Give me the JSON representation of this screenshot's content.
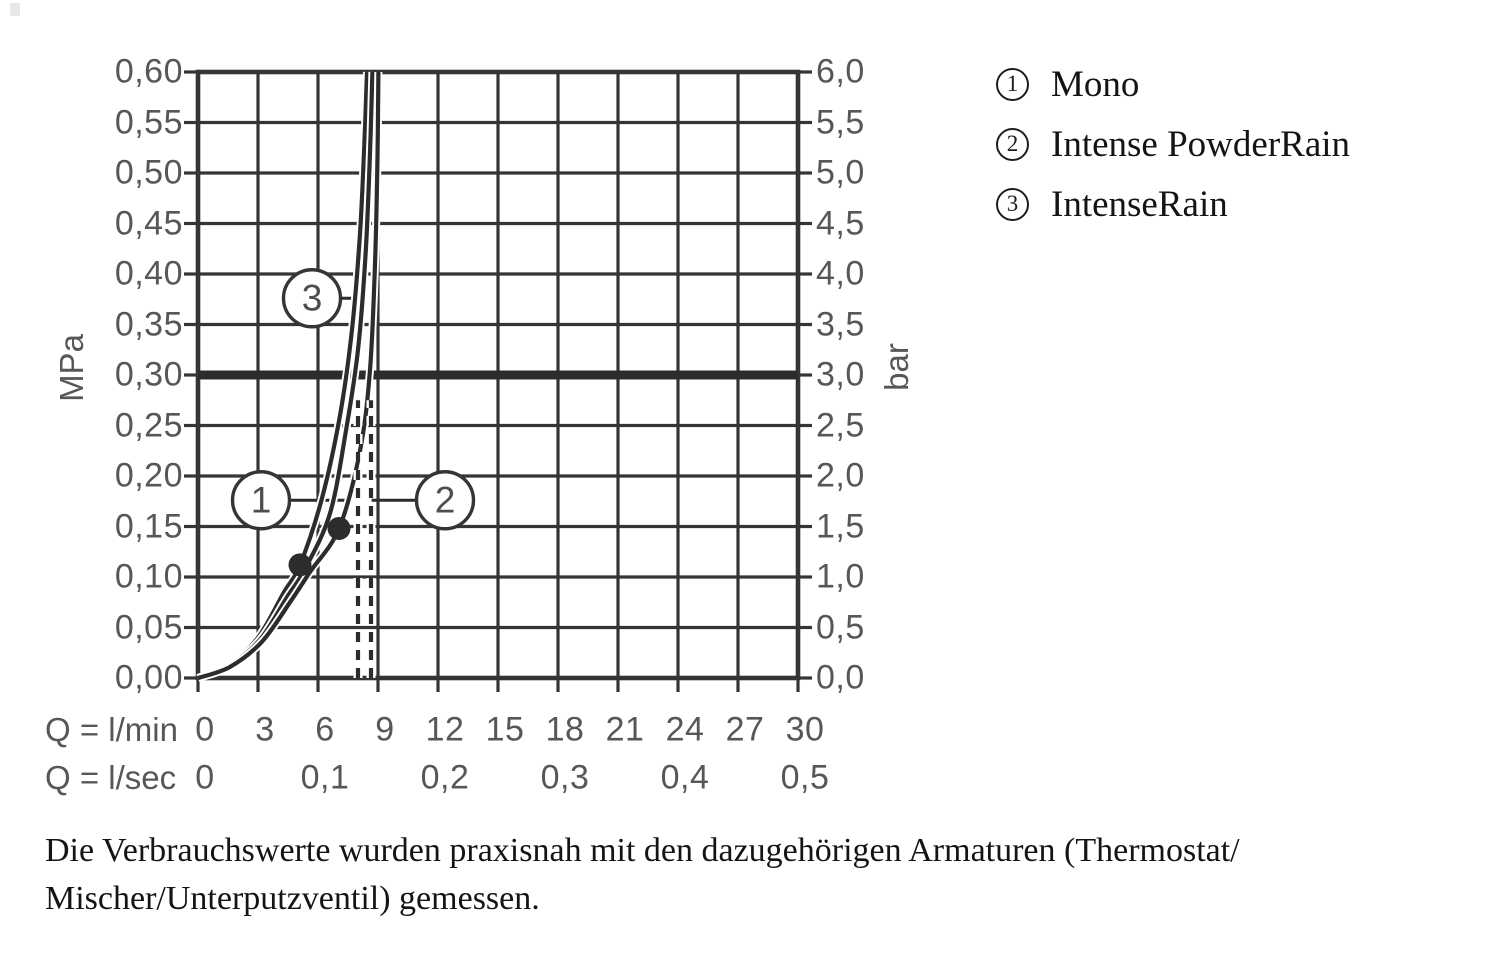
{
  "colors": {
    "grid_line": "#353537",
    "curve": "#2c2c2e",
    "axis_text": "#57575a",
    "callout_text": "#4e4e50",
    "body_text": "#141414",
    "background": "#ffffff"
  },
  "chart_data": {
    "type": "line",
    "title": "",
    "grid": "on",
    "x_primary": {
      "label": "Q = l/min",
      "range": [
        0,
        30
      ],
      "ticks": [
        "0",
        "3",
        "6",
        "9",
        "12",
        "15",
        "18",
        "21",
        "24",
        "27",
        "30"
      ],
      "tick_values": [
        0,
        3,
        6,
        9,
        12,
        15,
        18,
        21,
        24,
        27,
        30
      ]
    },
    "x_secondary": {
      "label": "Q = l/sec",
      "labels": [
        "0",
        "0,1",
        "0,2",
        "0,3",
        "0,4",
        "0,5"
      ],
      "positions_lmin": [
        0,
        6,
        12,
        18,
        24,
        30
      ]
    },
    "y_left": {
      "label": "MPa",
      "range": [
        0,
        0.6
      ],
      "ticks": [
        "0,60",
        "0,55",
        "0,50",
        "0,45",
        "0,40",
        "0,35",
        "0,30",
        "0,25",
        "0,20",
        "0,15",
        "0,10",
        "0,05",
        "0,00"
      ],
      "tick_values": [
        0.6,
        0.55,
        0.5,
        0.45,
        0.4,
        0.35,
        0.3,
        0.25,
        0.2,
        0.15,
        0.1,
        0.05,
        0.0
      ]
    },
    "y_right": {
      "label": "bar",
      "range": [
        0,
        6
      ],
      "ticks": [
        "6,0",
        "5,5",
        "5,0",
        "4,5",
        "4,0",
        "3,5",
        "3,0",
        "2,5",
        "2,0",
        "1,5",
        "1,0",
        "0,5",
        "0,0"
      ]
    },
    "reference_line": {
      "mpa": 0.3,
      "bar": 3.0
    },
    "dashed_lines": {
      "x_lmin": [
        8.0,
        8.65
      ],
      "mpa_top": 0.275
    },
    "markers": [
      {
        "lmin": 5.1,
        "mpa": 0.112
      },
      {
        "lmin": 7.05,
        "mpa": 0.148
      }
    ],
    "series": [
      {
        "id": "1",
        "name": "Mono",
        "points": [
          [
            0,
            0
          ],
          [
            1.5,
            0.012
          ],
          [
            3,
            0.04
          ],
          [
            4.3,
            0.085
          ],
          [
            5.1,
            0.112
          ],
          [
            6.2,
            0.178
          ],
          [
            7.1,
            0.26
          ],
          [
            7.7,
            0.345
          ],
          [
            8.1,
            0.44
          ],
          [
            8.32,
            0.53
          ],
          [
            8.45,
            0.6
          ]
        ]
      },
      {
        "id": "3",
        "name": "IntenseRain",
        "points": [
          [
            0,
            0
          ],
          [
            1.55,
            0.012
          ],
          [
            3.1,
            0.038
          ],
          [
            4.45,
            0.08
          ],
          [
            5.35,
            0.108
          ],
          [
            6.6,
            0.163
          ],
          [
            7.4,
            0.245
          ],
          [
            8.0,
            0.325
          ],
          [
            8.38,
            0.42
          ],
          [
            8.6,
            0.52
          ],
          [
            8.72,
            0.6
          ]
        ]
      },
      {
        "id": "2",
        "name": "Intense PowderRain",
        "points": [
          [
            0,
            0
          ],
          [
            1.6,
            0.011
          ],
          [
            3.2,
            0.036
          ],
          [
            4.6,
            0.075
          ],
          [
            5.6,
            0.105
          ],
          [
            7.05,
            0.148
          ],
          [
            8.1,
            0.225
          ],
          [
            8.6,
            0.305
          ],
          [
            8.85,
            0.41
          ],
          [
            8.97,
            0.51
          ],
          [
            9.02,
            0.6
          ]
        ]
      }
    ],
    "callouts": [
      {
        "label": "1",
        "x_lmin": 3.15,
        "mpa": 0.176,
        "leader_to_lmin": 7.55
      },
      {
        "label": "2",
        "x_lmin": 12.35,
        "mpa": 0.176,
        "leader_to_lmin": 8.68
      },
      {
        "label": "3",
        "x_lmin": 5.7,
        "mpa": 0.376,
        "leader_to_lmin": 8.28
      }
    ]
  },
  "legend": {
    "items": [
      {
        "number": "1",
        "label": "Mono"
      },
      {
        "number": "2",
        "label": "Intense PowderRain"
      },
      {
        "number": "3",
        "label": "IntenseRain"
      }
    ]
  },
  "footer": {
    "line1": "Die Verbrauchswerte wurden praxisnah mit den dazugehörigen Armaturen (Thermostat/",
    "line2": "Mischer/Unterputzventil) gemessen."
  }
}
